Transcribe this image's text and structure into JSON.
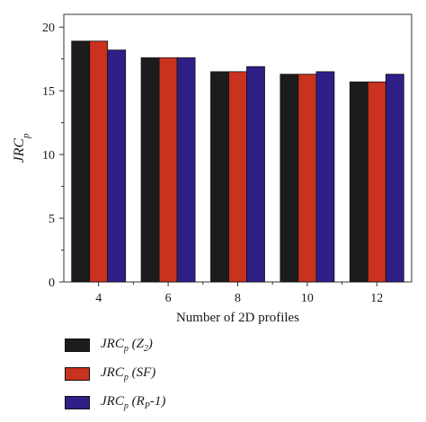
{
  "chart_data": {
    "type": "bar",
    "title": "",
    "xlabel": "Number of 2D profiles",
    "ylabel_main": "JRC",
    "ylabel_sub": "p",
    "categories": [
      "4",
      "6",
      "8",
      "10",
      "12"
    ],
    "ylim": [
      0,
      21
    ],
    "yticks": [
      0,
      5,
      10,
      15,
      20
    ],
    "grid": false,
    "legend_position": "bottom-left, below plot",
    "series": [
      {
        "name": "JRCp (Z2)",
        "label_main": "JRC",
        "label_sub": "p",
        "label_rest": " (Z",
        "label_rest_sub": "2",
        "label_tail": ")",
        "color": "#1c1c1c",
        "values": [
          18.9,
          17.6,
          16.5,
          16.3,
          15.7
        ]
      },
      {
        "name": "JRCp (SF)",
        "label_main": "JRC",
        "label_sub": "p",
        "label_rest": " (SF)",
        "label_rest_sub": "",
        "label_tail": "",
        "color": "#c8321e",
        "values": [
          18.9,
          17.6,
          16.5,
          16.3,
          15.7
        ]
      },
      {
        "name": "JRCp (Rp-1)",
        "label_main": "JRC",
        "label_sub": "p",
        "label_rest": " (R",
        "label_rest_sub": "P",
        "label_tail": "-1)",
        "color": "#2e1f87",
        "values": [
          18.2,
          17.6,
          16.9,
          16.5,
          16.3
        ]
      }
    ]
  }
}
